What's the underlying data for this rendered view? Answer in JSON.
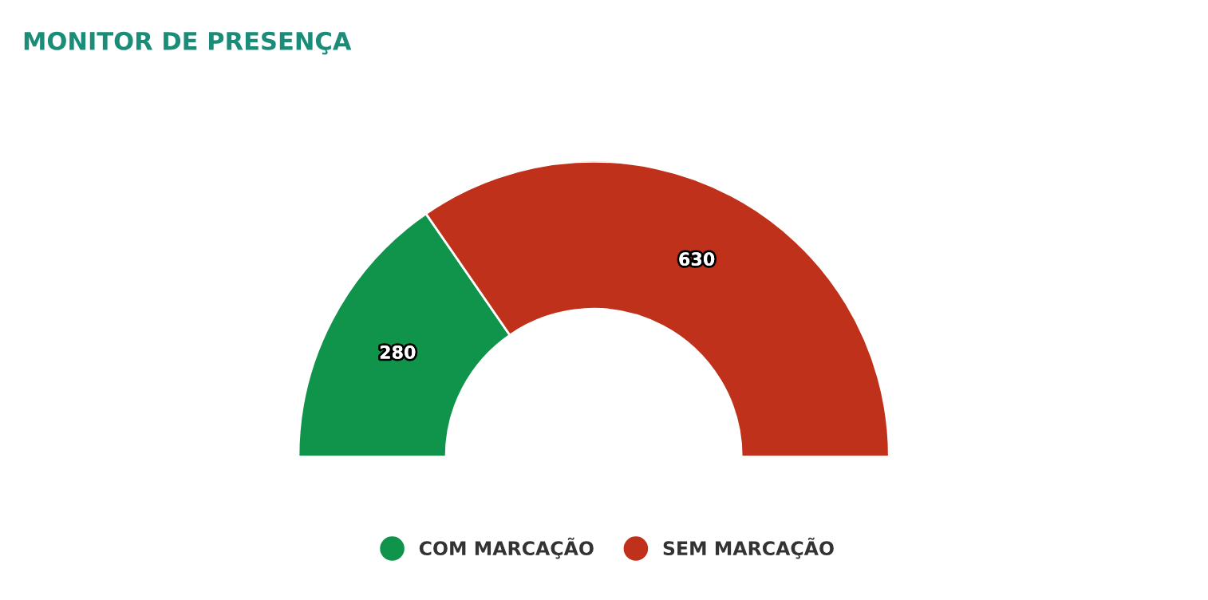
{
  "chart_data": {
    "type": "donut",
    "title": "MONITOR DE PRESENÇA",
    "categories": [
      "COM MARCAÇÃO",
      "SEM MARCAÇÃO"
    ],
    "values": [
      280,
      630
    ],
    "colors": [
      "#10934a",
      "#c0311b"
    ],
    "data_labels": true,
    "legend": "bottom"
  }
}
